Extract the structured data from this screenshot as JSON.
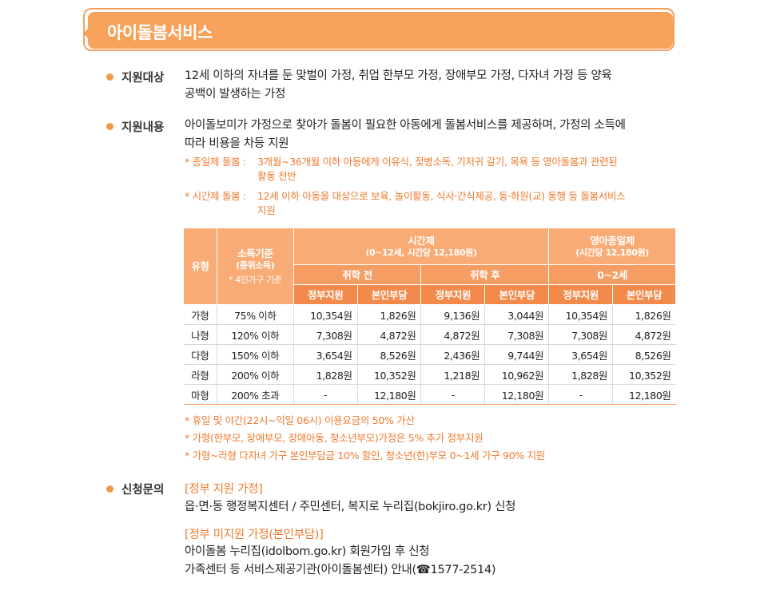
{
  "banner": {
    "title": "아이돌봄서비스"
  },
  "sections": {
    "target": {
      "label": "지원대상",
      "line1": "12세 이하의 자녀를 둔 맞벌이 가정, 취업 한부모 가정, 장애부모 가정, 다자녀 가정 등 양육",
      "line2": "공백이 발생하는 가정"
    },
    "content": {
      "label": "지원내용",
      "line1": "아이돌보미가 가정으로 찾아가 돌봄이 필요한 아동에게 돌봄서비스를 제공하며, 가정의 소득에",
      "line2": "따라 비용을 차등 지원",
      "note1_label": "* 종일제 돌봄 :",
      "note1_line1": "3개월~36개월 이하 아동에게 이유식, 젖병소독, 기저귀 갈기, 목욕 등 영아돌봄과 관련된",
      "note1_line2": "활동 전반",
      "note2_label": "* 시간제 돌봄 :",
      "note2_line1": "12세 이하 아동을 대상으로 보육, 놀이활동, 식사·간식제공, 등·하원(교) 동행 등 돌봄서비스",
      "note2_line2": "지원"
    },
    "inquiry": {
      "label": "신청문의",
      "gov_head": "[정부 지원 가정]",
      "gov_text": "읍·면·동 행정복지센터 / 주민센터, 복지로 누리집(bokjiro.go.kr) 신청",
      "nongov_head": "[정부 미지원 가정(본인부담)]",
      "nongov_line1": "아이돌봄 누리집(idolbom.go.kr) 회원가입 후 신청",
      "nongov_line2": "가족센터 등 서비스제공기관(아이돌봄센터) 안내(☎1577-2514)"
    }
  },
  "table": {
    "h_type": "유형",
    "h_income": "소득기준",
    "h_income_sub": "(중위소득)",
    "h_income_note": "* 4인가구 기준",
    "h_time": "시간제",
    "h_time_sub": "(0~12세, 시간당 12,180원)",
    "h_full": "영아종일제",
    "h_full_sub": "(시간당 12,180원)",
    "h_before": "취학 전",
    "h_after": "취학 후",
    "h_age": "0~2세",
    "h_gov": "정부지원",
    "h_self": "본인부담",
    "rows": [
      {
        "type": "가형",
        "income": "75% 이하",
        "c1": "10,354원",
        "c2": "1,826원",
        "c3": "9,136원",
        "c4": "3,044원",
        "c5": "10,354원",
        "c6": "1,826원"
      },
      {
        "type": "나형",
        "income": "120% 이하",
        "c1": "7,308원",
        "c2": "4,872원",
        "c3": "4,872원",
        "c4": "7,308원",
        "c5": "7,308원",
        "c6": "4,872원"
      },
      {
        "type": "다형",
        "income": "150% 이하",
        "c1": "3,654원",
        "c2": "8,526원",
        "c3": "2,436원",
        "c4": "9,744원",
        "c5": "3,654원",
        "c6": "8,526원"
      },
      {
        "type": "라형",
        "income": "200% 이하",
        "c1": "1,828원",
        "c2": "10,352원",
        "c3": "1,218원",
        "c4": "10,962원",
        "c5": "1,828원",
        "c6": "10,352원"
      },
      {
        "type": "마형",
        "income": "200% 초과",
        "c1": "-",
        "c2": "12,180원",
        "c3": "-",
        "c4": "12,180원",
        "c5": "-",
        "c6": "12,180원"
      }
    ]
  },
  "table_notes": {
    "n1": "* 휴일 및 야간(22시~익일 06시) 이용요금의 50% 가산",
    "n2": "* 가형(한부모, 장애부모, 장애아동, 청소년부모)가정은 5% 추가 정부지원",
    "n3": "*  가형~라형 다자녀 가구 본인부담금 10% 할인, 청소년(한)부모 0~1세 가구 90% 지원"
  }
}
